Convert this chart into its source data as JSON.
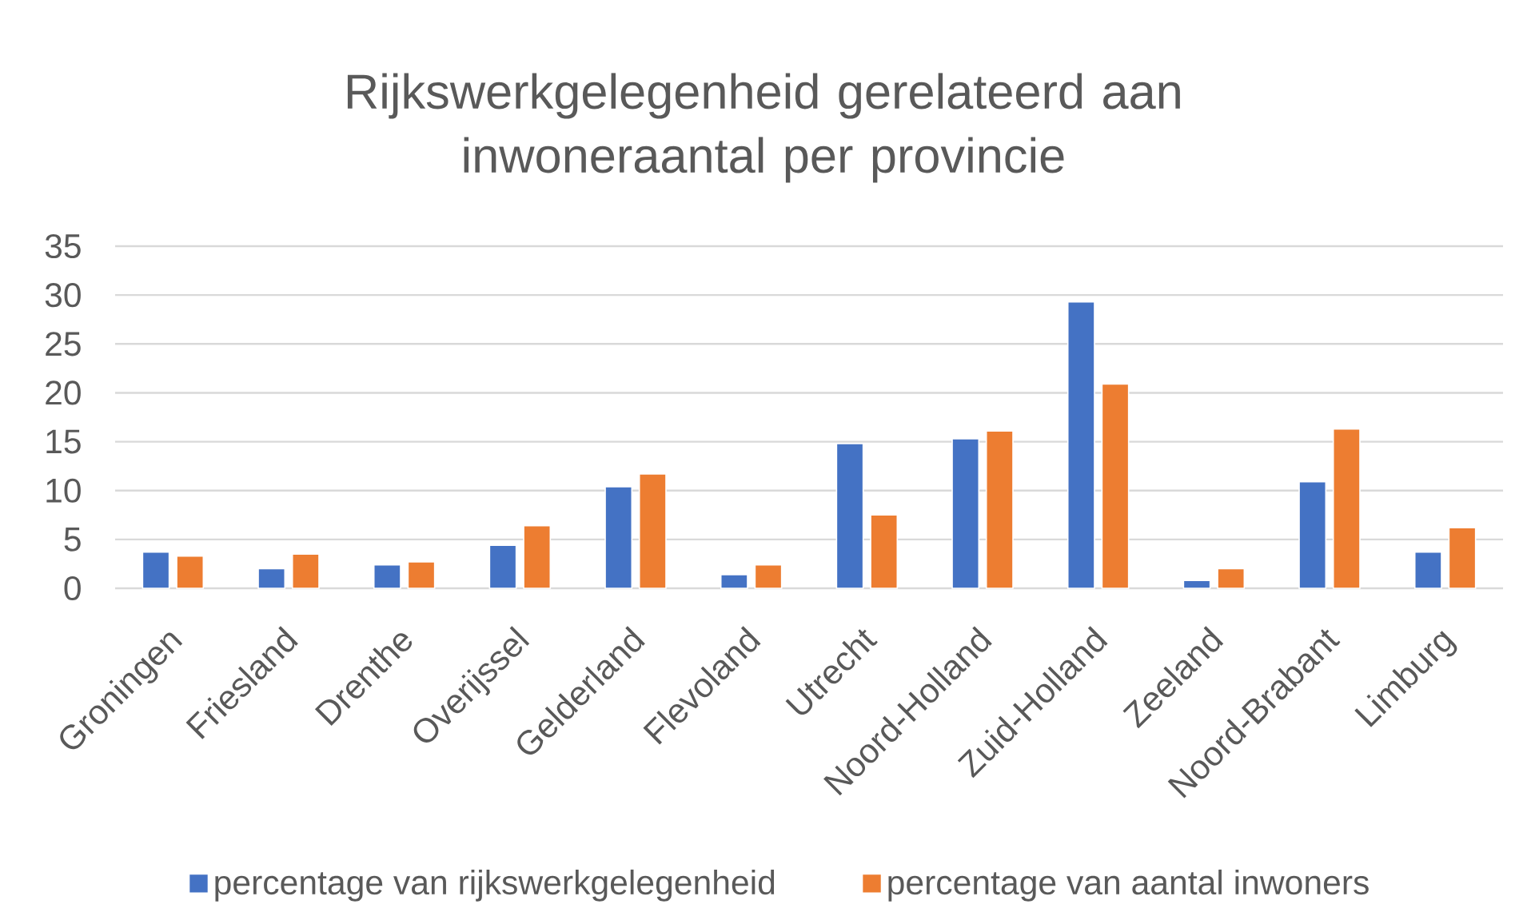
{
  "chart_data": {
    "type": "bar",
    "title": "Rijkswerkgelegenheid gerelateerd aan inwoneraantal per provincie",
    "categories": [
      "Groningen",
      "Friesland",
      "Drenthe",
      "Overijssel",
      "Gelderland",
      "Flevoland",
      "Utrecht",
      "Noord-Holland",
      "Zuid-Holland",
      "Zeeland",
      "Noord-Brabant",
      "Limburg"
    ],
    "series": [
      {
        "name": "percentage van rijkswerkgelegenheid",
        "color": "#4472c4",
        "values": [
          3.7,
          2.0,
          2.4,
          4.4,
          10.4,
          1.4,
          14.8,
          15.3,
          29.3,
          0.8,
          10.9,
          3.7
        ]
      },
      {
        "name": "percentage van aantal inwoners",
        "color": "#ed7d31",
        "values": [
          3.3,
          3.5,
          2.7,
          6.4,
          11.7,
          2.4,
          7.5,
          16.1,
          20.9,
          2.0,
          16.3,
          6.2
        ]
      }
    ],
    "ylim": [
      0,
      35
    ],
    "yticks": [
      0,
      5,
      10,
      15,
      20,
      25,
      30,
      35
    ],
    "grid": "y",
    "legend": "bottom"
  }
}
